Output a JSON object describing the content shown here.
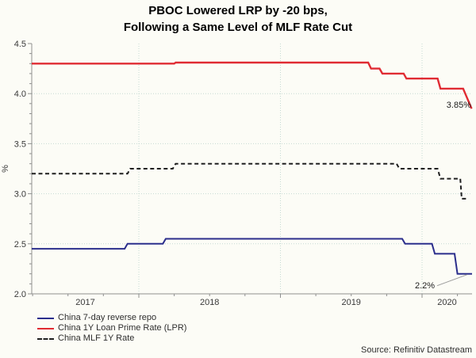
{
  "chart_data": {
    "type": "line",
    "title_line1": "PBOC Lowered LRP by -20 bps,",
    "title_line2": "Following a Same Level of MLF Rate Cut",
    "ylabel": "%",
    "ylim": [
      2.0,
      4.5
    ],
    "y_tick_labels": [
      "2.0",
      "2.5",
      "3.0",
      "3.5",
      "4.0",
      "4.5"
    ],
    "grid_y": [
      2.5,
      3.0,
      3.5,
      4.0
    ],
    "x_range": [
      2017.244,
      2020.353
    ],
    "year_boundaries": [
      2018,
      2019,
      2020
    ],
    "x_tick_labels": [
      "2017",
      "2018",
      "2019",
      "2020"
    ],
    "grid_style": "dotted",
    "legend_position": "bottom-left",
    "series": [
      {
        "name": "China 7-day reverse repo",
        "color": "#2b2e8c",
        "style": "solid",
        "points": [
          [
            2017.244,
            2.45
          ],
          [
            2017.9,
            2.45
          ],
          [
            2017.92,
            2.5
          ],
          [
            2018.17,
            2.5
          ],
          [
            2018.19,
            2.55
          ],
          [
            2019.86,
            2.55
          ],
          [
            2019.88,
            2.5
          ],
          [
            2020.07,
            2.5
          ],
          [
            2020.09,
            2.4
          ],
          [
            2020.23,
            2.4
          ],
          [
            2020.25,
            2.2
          ],
          [
            2020.353,
            2.2
          ]
        ]
      },
      {
        "name": "China 1Y Loan Prime Rate (LPR)",
        "color": "#e02b33",
        "style": "solid",
        "points": [
          [
            2017.244,
            4.3
          ],
          [
            2018.25,
            4.3
          ],
          [
            2018.26,
            4.31
          ],
          [
            2019.62,
            4.31
          ],
          [
            2019.64,
            4.25
          ],
          [
            2019.7,
            4.25
          ],
          [
            2019.72,
            4.2
          ],
          [
            2019.87,
            4.2
          ],
          [
            2019.89,
            4.15
          ],
          [
            2020.11,
            4.15
          ],
          [
            2020.13,
            4.05
          ],
          [
            2020.29,
            4.05
          ],
          [
            2020.35,
            3.85
          ]
        ]
      },
      {
        "name": "China MLF 1Y Rate",
        "color": "#1f1f1f",
        "style": "dashed",
        "points": [
          [
            2017.244,
            3.2
          ],
          [
            2017.92,
            3.2
          ],
          [
            2017.94,
            3.25
          ],
          [
            2018.24,
            3.25
          ],
          [
            2018.26,
            3.3
          ],
          [
            2019.82,
            3.3
          ],
          [
            2019.84,
            3.25
          ],
          [
            2020.11,
            3.25
          ],
          [
            2020.13,
            3.15
          ],
          [
            2020.27,
            3.15
          ],
          [
            2020.28,
            2.95
          ],
          [
            2020.32,
            2.95
          ]
        ]
      }
    ],
    "annotations": [
      {
        "text": "3.85%",
        "series": "China 1Y Loan Prime Rate (LPR)"
      },
      {
        "text": "2.2%",
        "series": "China 7-day reverse repo"
      }
    ],
    "source": "Source: Refinitiv Datastream",
    "colors": {
      "grid": "#c5dad2",
      "axis": "#8f8f8f",
      "tick_text": "#3a3a3a",
      "leader_line": "#9a9a9a"
    }
  }
}
